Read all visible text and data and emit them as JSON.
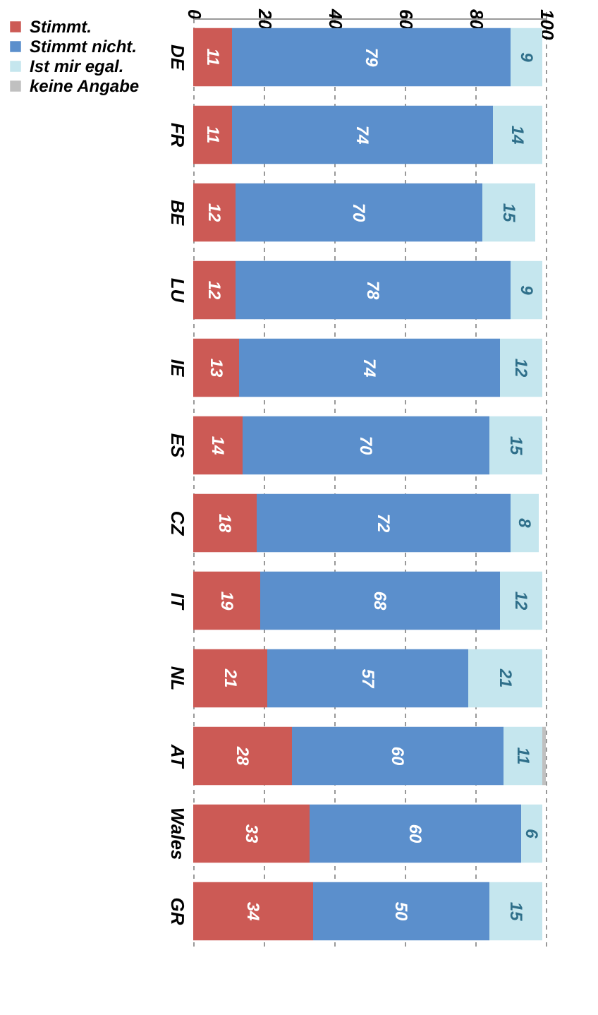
{
  "chart_data": {
    "type": "bar",
    "orientation": "horizontal",
    "stacked": true,
    "categories": [
      "DE",
      "FR",
      "BE",
      "LU",
      "IE",
      "ES",
      "CZ",
      "IT",
      "NL",
      "AT",
      "Wales",
      "GR"
    ],
    "series": [
      {
        "name": "Stimmt.",
        "color": "#cc5a55",
        "values": [
          11,
          11,
          12,
          12,
          13,
          14,
          18,
          19,
          21,
          28,
          33,
          34
        ],
        "value_labels": [
          "11",
          "11",
          "12",
          "12",
          "13",
          "14",
          "18",
          "19",
          "21",
          "28",
          "33",
          "34"
        ]
      },
      {
        "name": "Stimmt nicht.",
        "color": "#5b8fcc",
        "values": [
          79,
          74,
          70,
          78,
          74,
          70,
          72,
          68,
          57,
          60,
          60,
          50
        ],
        "value_labels": [
          "79",
          "74",
          "70",
          "78",
          "74",
          "70",
          "72",
          "68",
          "57",
          "60",
          "60",
          "50"
        ]
      },
      {
        "name": "Ist mir egal.",
        "color": "#c5e6ee",
        "values": [
          9,
          14,
          15,
          9,
          12,
          15,
          8,
          12,
          21,
          11,
          6,
          15
        ],
        "value_labels": [
          "9",
          "14",
          "15",
          "9",
          "12",
          "15",
          "8",
          "12",
          "21",
          "11",
          "6",
          "15"
        ]
      },
      {
        "name": "keine Angabe",
        "color": "#c0c0c0",
        "values": [
          null,
          null,
          null,
          null,
          null,
          null,
          null,
          null,
          null,
          1,
          null,
          null
        ]
      }
    ],
    "xlim": [
      0,
      100
    ],
    "xticks": [
      0,
      20,
      40,
      60,
      80,
      100
    ],
    "grid": "x",
    "legend": "left"
  }
}
